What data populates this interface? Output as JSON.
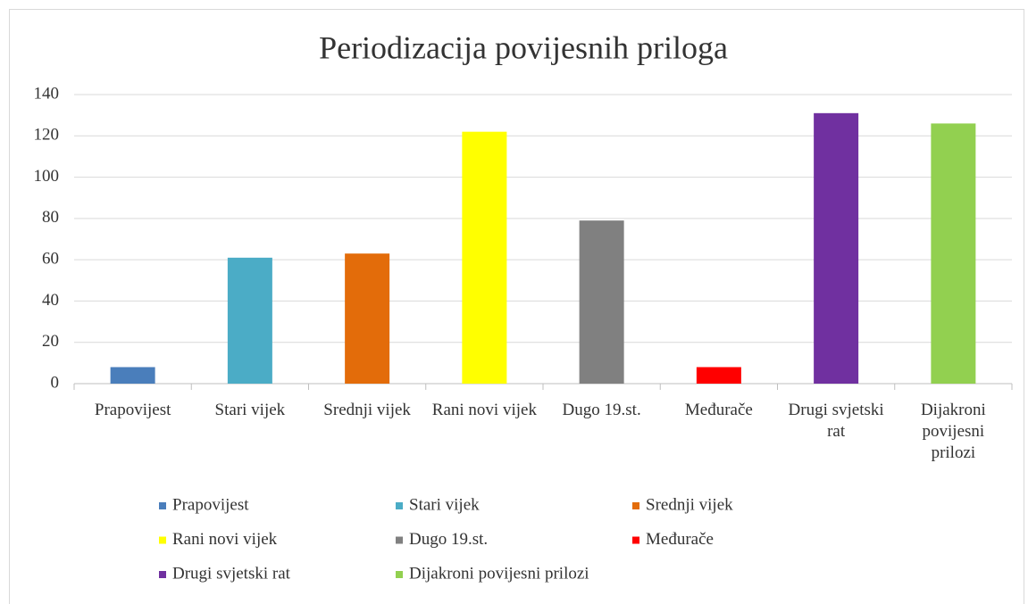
{
  "chart_data": {
    "type": "bar",
    "title": "Periodizacija povijesnih priloga",
    "categories": [
      "Prapovijest",
      "Stari vijek",
      "Srednji vijek",
      "Rani novi vijek",
      "Dugo 19.st.",
      "Međurače",
      "Drugi svjetski rat",
      "Dijakroni povijesni prilozi"
    ],
    "values": [
      8,
      61,
      63,
      122,
      79,
      8,
      131,
      126
    ],
    "colors": [
      "#4a7ebb",
      "#4bacc6",
      "#e36c0a",
      "#ffff00",
      "#808080",
      "#ff0000",
      "#7030a0",
      "#92d050"
    ],
    "ylim": [
      0,
      140
    ],
    "yticks": [
      0,
      20,
      40,
      60,
      80,
      100,
      120,
      140
    ],
    "grid": true
  }
}
